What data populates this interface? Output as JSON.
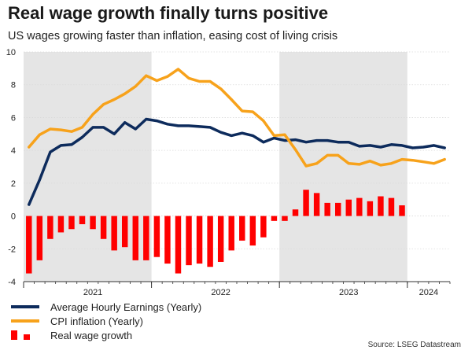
{
  "header": {
    "title": "Real wage growth finally turns positive",
    "subtitle": "US wages growing faster than inflation, easing cost of living crisis"
  },
  "legend": {
    "earnings": "Average Hourly Earnings (Yearly)",
    "cpi": "CPI inflation (Yearly)",
    "real": "Real wage growth"
  },
  "source": "Source: LSEG Datastream",
  "colors": {
    "earnings": "#0d2b5c",
    "cpi": "#f7a21b",
    "real": "#ff0000",
    "shade": "#e5e5e5",
    "grid": "#d9d9d9"
  },
  "chart_data": {
    "type": "line",
    "title": "Real wage growth finally turns positive",
    "xlabel": "",
    "ylabel": "",
    "ylim": [
      -4,
      10
    ],
    "yticks": [
      -4,
      -2,
      0,
      2,
      4,
      6,
      8,
      10
    ],
    "x": [
      "2020-12",
      "2021-01",
      "2021-02",
      "2021-03",
      "2021-04",
      "2021-05",
      "2021-06",
      "2021-07",
      "2021-08",
      "2021-09",
      "2021-10",
      "2021-11",
      "2021-12",
      "2022-01",
      "2022-02",
      "2022-03",
      "2022-04",
      "2022-05",
      "2022-06",
      "2022-07",
      "2022-08",
      "2022-09",
      "2022-10",
      "2022-11",
      "2022-12",
      "2023-01",
      "2023-02",
      "2023-03",
      "2023-04",
      "2023-05",
      "2023-06",
      "2023-07",
      "2023-08",
      "2023-09",
      "2023-10",
      "2023-11",
      "2023-12",
      "2024-01",
      "2024-02",
      "2024-03"
    ],
    "year_labels": [
      {
        "label": "2021",
        "index": 6.5
      },
      {
        "label": "2022",
        "index": 18.5
      },
      {
        "label": "2023",
        "index": 30.5
      },
      {
        "label": "2024",
        "index": 38
      }
    ],
    "shaded_years": [
      {
        "label": "2021",
        "start": 0,
        "end": 12
      },
      {
        "label": "2023",
        "start": 24,
        "end": 36
      }
    ],
    "series": [
      {
        "name": "Average Hourly Earnings (Yearly)",
        "kind": "line",
        "values": [
          0.7,
          2.2,
          3.9,
          4.3,
          4.35,
          4.8,
          5.4,
          5.4,
          5.0,
          5.7,
          5.3,
          5.9,
          5.8,
          5.6,
          5.5,
          5.5,
          5.45,
          5.4,
          5.1,
          4.9,
          5.05,
          4.9,
          4.5,
          4.75,
          4.6,
          4.65,
          4.5,
          4.6,
          4.6,
          4.5,
          4.5,
          4.25,
          4.3,
          4.2,
          4.35,
          4.3,
          4.15,
          4.2,
          4.3,
          4.15
        ]
      },
      {
        "name": "CPI inflation (Yearly)",
        "kind": "line",
        "values": [
          4.2,
          4.95,
          5.3,
          5.25,
          5.15,
          5.4,
          6.2,
          6.8,
          7.1,
          7.45,
          7.9,
          8.55,
          8.25,
          8.5,
          8.95,
          8.4,
          8.2,
          8.2,
          7.75,
          7.1,
          6.4,
          6.35,
          5.8,
          4.9,
          4.95,
          4.05,
          3.05,
          3.2,
          3.7,
          3.7,
          3.2,
          3.15,
          3.35,
          3.1,
          3.2,
          3.45,
          3.4,
          3.3,
          3.2,
          3.45
        ]
      },
      {
        "name": "Real wage growth",
        "kind": "bar",
        "values": [
          -3.5,
          -2.7,
          -1.4,
          -1.0,
          -0.8,
          -0.5,
          -0.8,
          -1.4,
          -2.1,
          -1.9,
          -2.7,
          -2.7,
          -2.5,
          -2.9,
          -3.5,
          -3.0,
          -2.9,
          -3.1,
          -2.8,
          -2.1,
          -1.5,
          -1.8,
          -1.3,
          -0.3,
          -0.3,
          0.4,
          1.6,
          1.4,
          0.8,
          0.8,
          1.0,
          1.1,
          0.9,
          1.2,
          1.1,
          0.65,
          null,
          null,
          null,
          null
        ]
      }
    ]
  }
}
